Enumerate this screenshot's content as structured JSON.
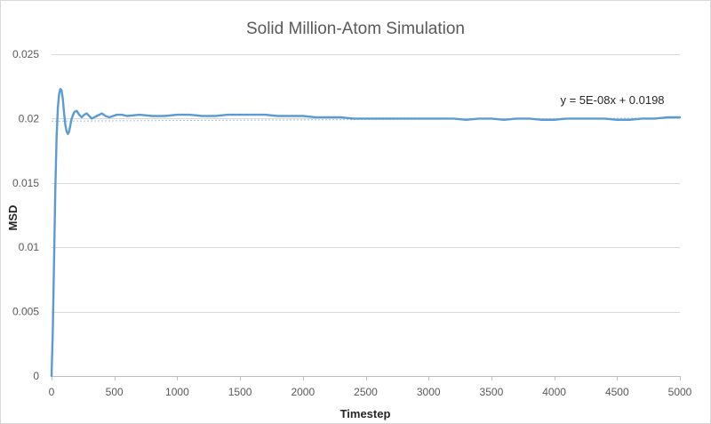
{
  "chart_data": {
    "type": "line",
    "title": "Solid Million-Atom Simulation",
    "xlabel": "Timestep",
    "ylabel": "MSD",
    "xlim": [
      0,
      5000
    ],
    "ylim": [
      0,
      0.025
    ],
    "x_ticks": [
      0,
      500,
      1000,
      1500,
      2000,
      2500,
      3000,
      3500,
      4000,
      4500,
      5000
    ],
    "x_tick_labels": [
      "0",
      "500",
      "1000",
      "1500",
      "2000",
      "2500",
      "3000",
      "3500",
      "4000",
      "4500",
      "5000"
    ],
    "y_ticks": [
      0,
      0.005,
      0.01,
      0.015,
      0.02,
      0.025
    ],
    "y_tick_labels": [
      "0",
      "0.005",
      "0.01",
      "0.015",
      "0.02",
      "0.025"
    ],
    "grid": "horizontal",
    "series": [
      {
        "name": "MSD",
        "color": "#5b9bd5",
        "x": [
          0,
          10,
          20,
          30,
          40,
          50,
          60,
          70,
          80,
          90,
          100,
          110,
          120,
          130,
          140,
          150,
          160,
          180,
          200,
          220,
          240,
          260,
          280,
          300,
          320,
          340,
          360,
          380,
          400,
          430,
          460,
          490,
          520,
          560,
          600,
          700,
          800,
          900,
          1000,
          1100,
          1200,
          1300,
          1400,
          1500,
          1600,
          1700,
          1800,
          1900,
          2000,
          2100,
          2200,
          2300,
          2400,
          2500,
          2600,
          2700,
          2800,
          2900,
          3000,
          3100,
          3200,
          3300,
          3400,
          3500,
          3600,
          3700,
          3800,
          3900,
          4000,
          4100,
          4200,
          4300,
          4400,
          4500,
          4600,
          4700,
          4800,
          4900,
          5000
        ],
        "y": [
          0,
          0.0035,
          0.009,
          0.0145,
          0.0185,
          0.0208,
          0.0219,
          0.0223,
          0.0222,
          0.0215,
          0.0204,
          0.0195,
          0.019,
          0.0188,
          0.019,
          0.0195,
          0.02,
          0.0205,
          0.0206,
          0.0203,
          0.0201,
          0.0203,
          0.0204,
          0.0202,
          0.02,
          0.0201,
          0.0202,
          0.0203,
          0.0204,
          0.0202,
          0.0201,
          0.0202,
          0.0203,
          0.0203,
          0.0202,
          0.0203,
          0.0202,
          0.0202,
          0.0203,
          0.0203,
          0.0202,
          0.0202,
          0.0203,
          0.0203,
          0.0203,
          0.0203,
          0.0202,
          0.0202,
          0.0202,
          0.0201,
          0.0201,
          0.0201,
          0.02,
          0.02,
          0.02,
          0.02,
          0.02,
          0.02,
          0.02,
          0.02,
          0.02,
          0.0199,
          0.02,
          0.02,
          0.0199,
          0.02,
          0.02,
          0.0199,
          0.0199,
          0.02,
          0.02,
          0.02,
          0.02,
          0.0199,
          0.0199,
          0.02,
          0.02,
          0.0201,
          0.0201
        ]
      }
    ],
    "trendline": {
      "type": "linear",
      "slope": 5e-08,
      "intercept": 0.0198,
      "equation": "y = 5E-08x + 0.0198",
      "color": "#9dc3e6",
      "style": "dotted"
    }
  }
}
